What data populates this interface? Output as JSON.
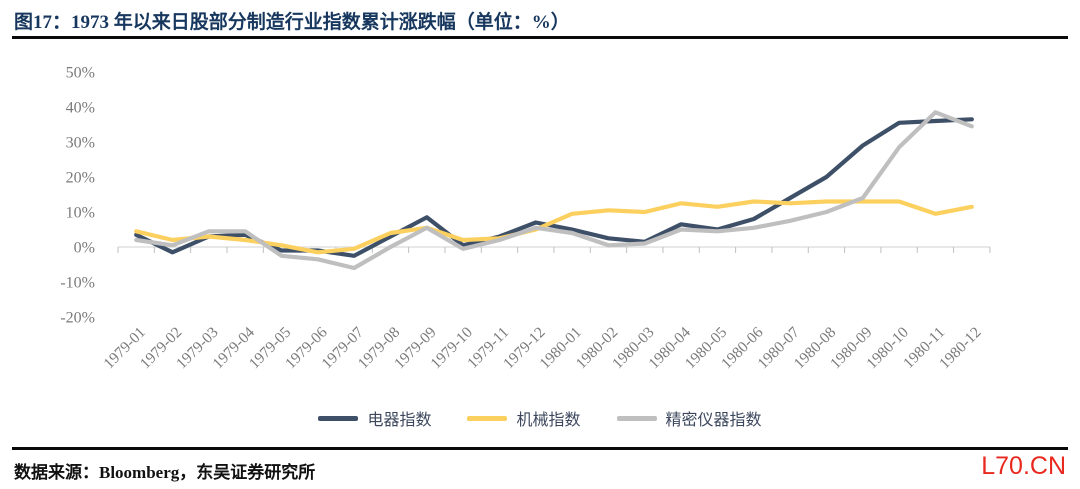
{
  "header": {
    "title": "图17：1973 年以来日股部分制造行业指数累计涨跌幅（单位：%）"
  },
  "chart_data": {
    "type": "line",
    "title": "1973 年以来日股部分制造行业指数累计涨跌幅",
    "unit": "%",
    "categories": [
      "1979-01",
      "1979-02",
      "1979-03",
      "1979-04",
      "1979-05",
      "1979-06",
      "1979-07",
      "1979-08",
      "1979-09",
      "1979-10",
      "1979-11",
      "1979-12",
      "1980-01",
      "1980-02",
      "1980-03",
      "1980-04",
      "1980-05",
      "1980-06",
      "1980-07",
      "1980-08",
      "1980-09",
      "1980-10",
      "1980-11",
      "1980-12"
    ],
    "series": [
      {
        "name": "电器指数",
        "color": "#3E5068",
        "values": [
          3.5,
          -1.5,
          3,
          3.5,
          -1,
          -1,
          -2.5,
          3,
          8.5,
          0.5,
          3,
          7,
          5,
          2.5,
          1.5,
          6.5,
          5,
          8,
          14,
          20,
          29,
          35.5,
          36,
          36.5
        ]
      },
      {
        "name": "机械指数",
        "color": "#FCD05F",
        "values": [
          4.5,
          2,
          3,
          2,
          0.5,
          -1.5,
          -0.5,
          4,
          5.5,
          2,
          2.5,
          5,
          9.5,
          10.5,
          10,
          12.5,
          11.5,
          13,
          12.5,
          13,
          13,
          13,
          9.5,
          11.5
        ]
      },
      {
        "name": "精密仪器指数",
        "color": "#BFBFBF",
        "values": [
          2,
          0.5,
          4.5,
          4.5,
          -2.5,
          -3.5,
          -6,
          0,
          5.5,
          -0.5,
          2,
          5.5,
          4,
          0.5,
          1,
          5,
          4.5,
          5.5,
          7.5,
          10,
          14,
          28.5,
          38.5,
          34.5
        ]
      }
    ],
    "yticks": [
      50,
      40,
      30,
      20,
      10,
      0,
      -10,
      -20
    ],
    "ylim": [
      -20,
      50
    ],
    "ytick_suffix": "%",
    "grid": "zero-axis-only",
    "legend_position": "bottom",
    "axis_color": "#D9D9D9",
    "tick_color": "#BFBFBF",
    "label_color": "#7A7A7A"
  },
  "footer": {
    "source": "数据来源：Bloomberg，东吴证券研究所",
    "watermark": "L70.CN"
  }
}
